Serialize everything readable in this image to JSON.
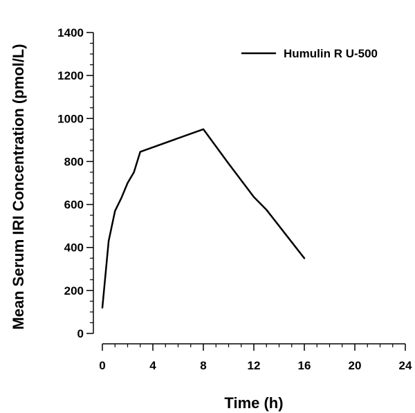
{
  "chart_data": {
    "type": "line",
    "title": "",
    "xlabel": "Time (h)",
    "ylabel": "Mean Serum IRI Concentration (pmol/L)",
    "xlim": [
      0,
      24
    ],
    "ylim": [
      0,
      1400
    ],
    "x_ticks": [
      0,
      4,
      8,
      12,
      16,
      20,
      24
    ],
    "y_ticks": [
      0,
      200,
      400,
      600,
      800,
      1000,
      1200,
      1400
    ],
    "x_minor_step": 1,
    "y_minor_step": 50,
    "grid": false,
    "legend_position": "top-right",
    "series": [
      {
        "name": "Humulin R U-500",
        "color": "#000000",
        "x": [
          0,
          0.5,
          1,
          1.5,
          2,
          2.5,
          3,
          8,
          10,
          12,
          13,
          16
        ],
        "y": [
          120,
          430,
          570,
          630,
          700,
          750,
          845,
          950,
          790,
          635,
          575,
          350
        ]
      }
    ]
  }
}
